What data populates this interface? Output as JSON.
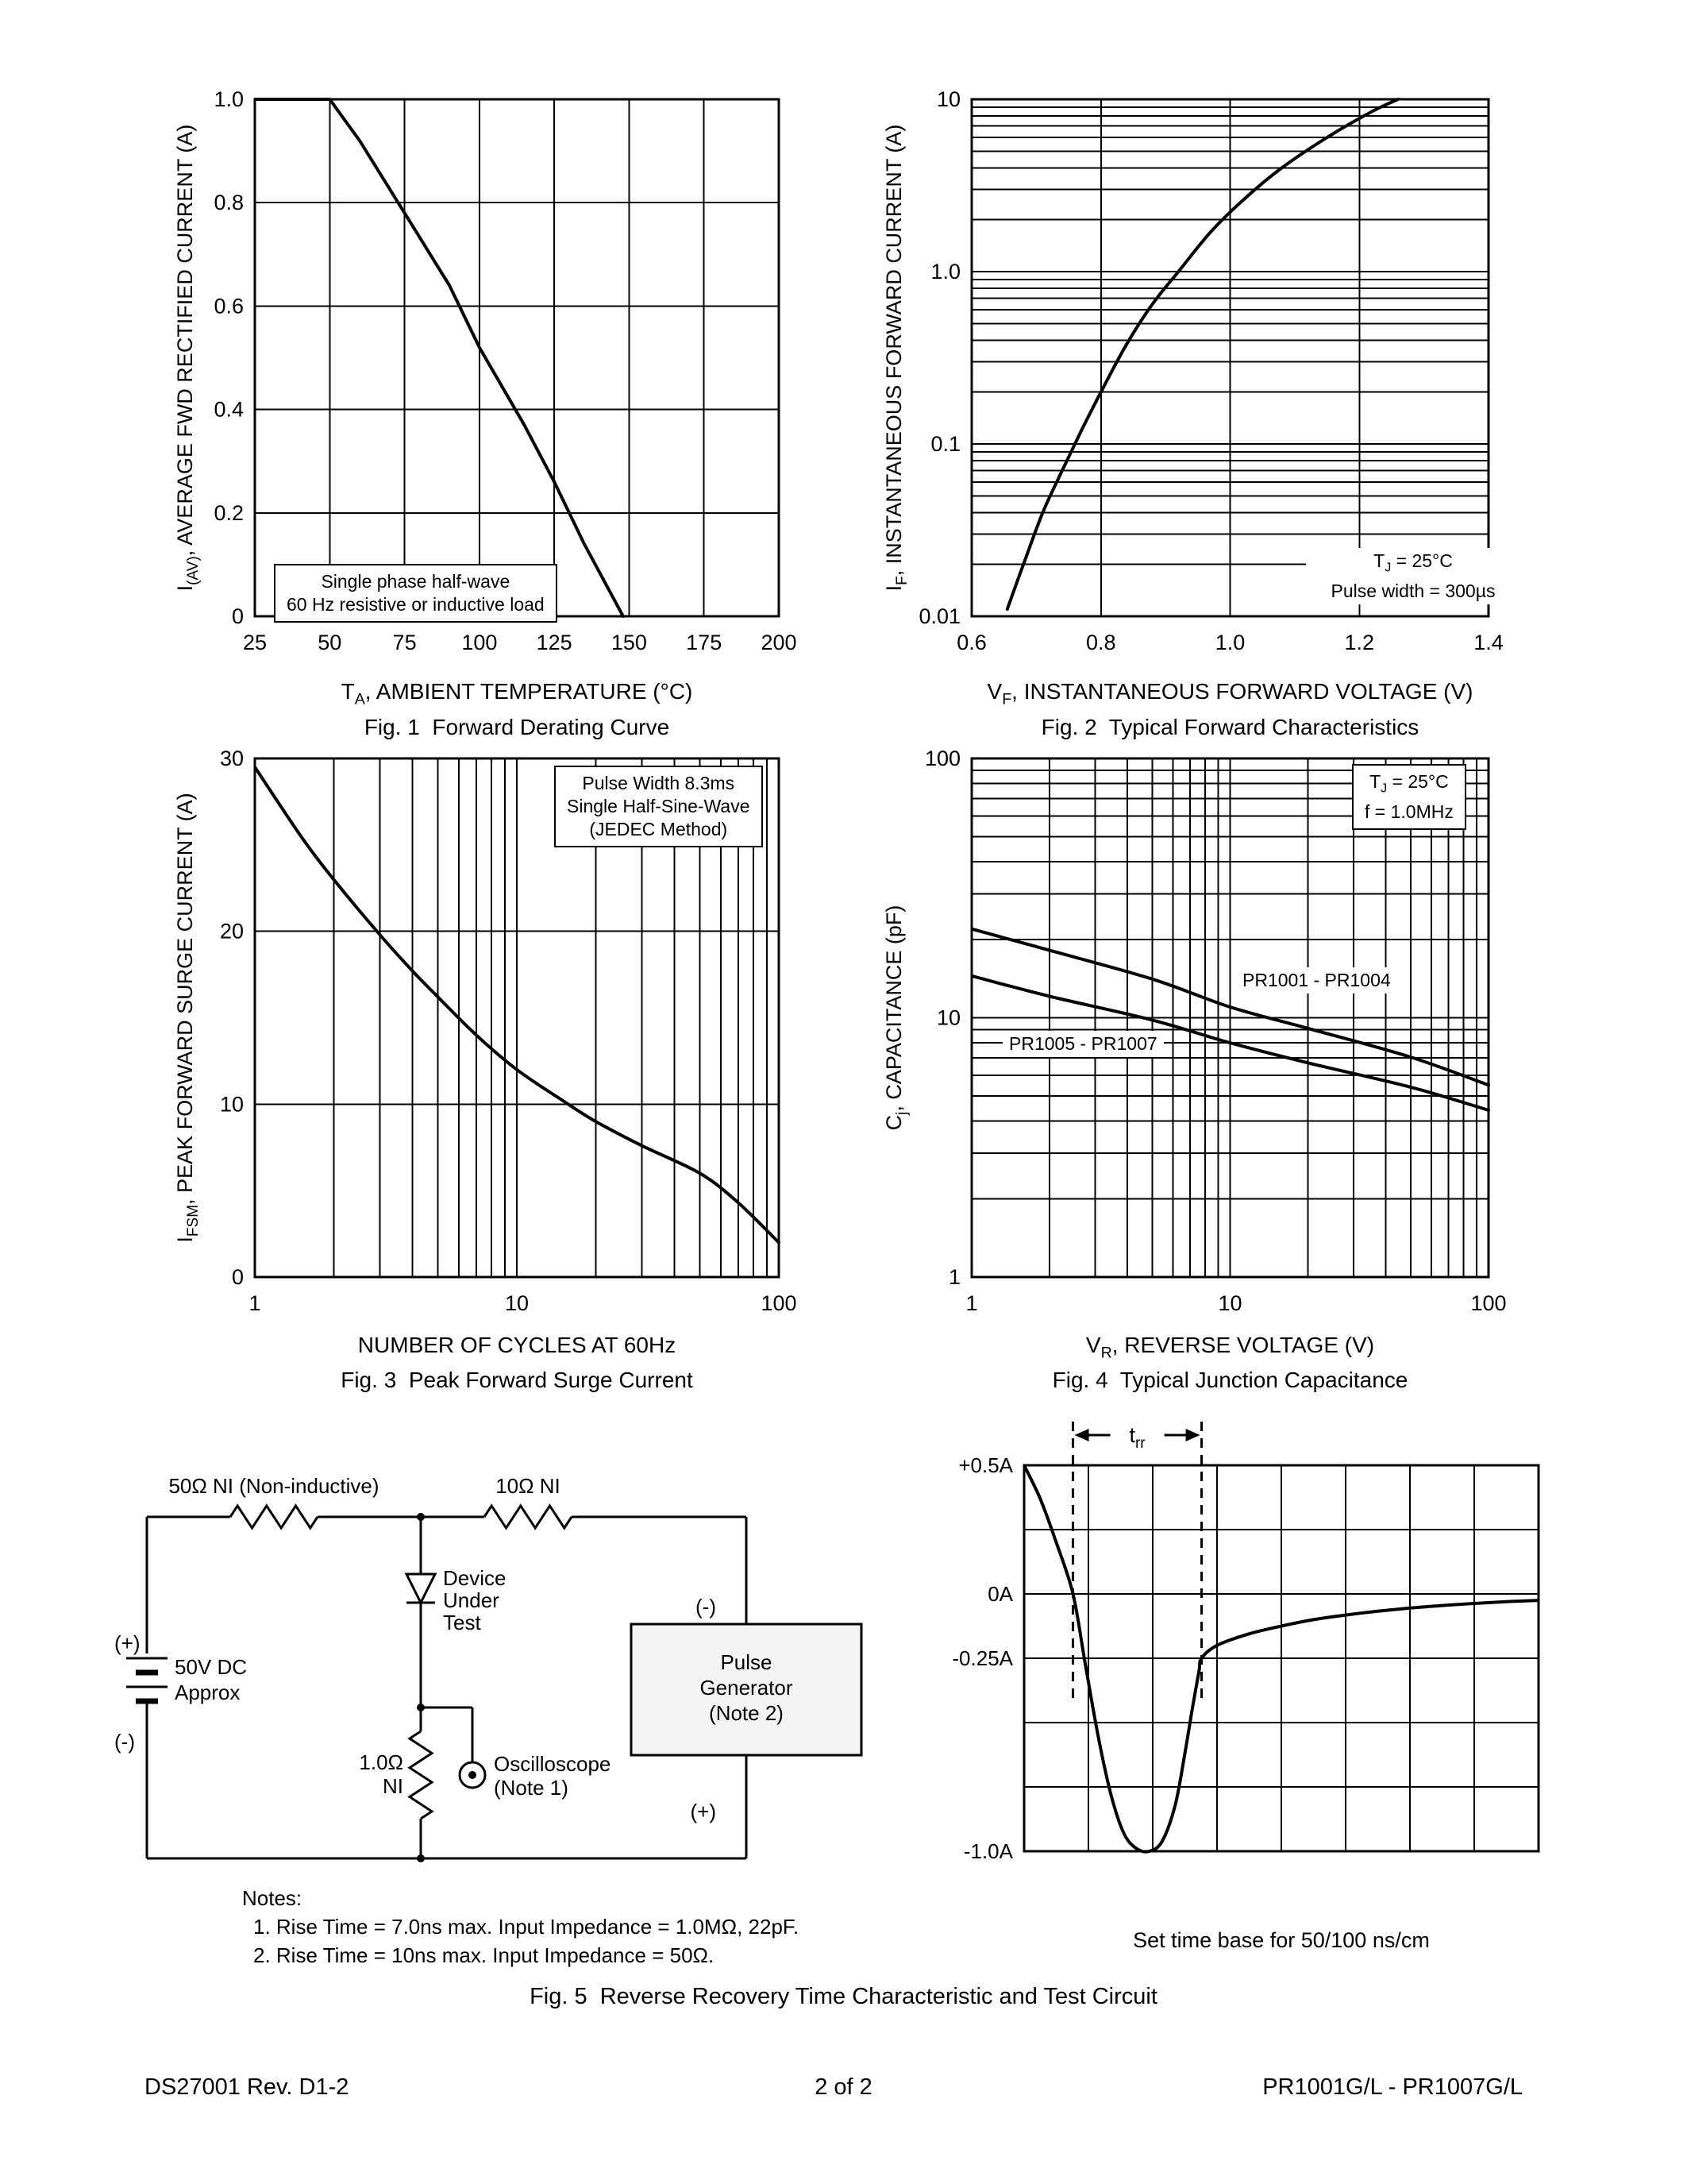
{
  "page": {
    "bg": "#ffffff",
    "fg": "#000000"
  },
  "chart_data": [
    {
      "id": "fig1",
      "type": "line",
      "title": "Fig. 1  Forward Derating Curve",
      "xlabel": [
        "T",
        {
          "sub": "A"
        },
        ", AMBIENT TEMPERATURE (°C)"
      ],
      "ylabel": [
        "I",
        {
          "sub": "(AV)"
        },
        ", AVERAGE FWD RECTIFIED CURRENT (A)"
      ],
      "xscale": "linear",
      "yscale": "linear",
      "xlim": [
        25,
        200
      ],
      "ylim": [
        0,
        1.0
      ],
      "xticks": [
        {
          "v": 25,
          "t": "25"
        },
        {
          "v": 50,
          "t": "50"
        },
        {
          "v": 75,
          "t": "75"
        },
        {
          "v": 100,
          "t": "100"
        },
        {
          "v": 125,
          "t": "125"
        },
        {
          "v": 150,
          "t": "150"
        },
        {
          "v": 175,
          "t": "175"
        },
        {
          "v": 200,
          "t": "200"
        }
      ],
      "yticks": [
        {
          "v": 1,
          "t": "1.0"
        },
        {
          "v": 0.8,
          "t": "0.8"
        },
        {
          "v": 0.6,
          "t": "0.6"
        },
        {
          "v": 0.4,
          "t": "0.4"
        },
        {
          "v": 0.2,
          "t": "0.2"
        },
        {
          "v": 0,
          "t": "0"
        }
      ],
      "xgrid": [
        50,
        75,
        100,
        125,
        150,
        175
      ],
      "ygrid": [
        0.2,
        0.4,
        0.6,
        0.8
      ],
      "annotations": [
        {
          "box": true,
          "lines": [
            [
              "Single phase half-wave"
            ],
            [
              "60 Hz resistive or inductive load"
            ]
          ]
        }
      ],
      "series": [
        {
          "name": "derating-limit",
          "x": [
            25,
            50,
            60,
            75,
            90,
            100,
            115,
            125,
            135,
            148
          ],
          "y": [
            1.0,
            1.0,
            0.92,
            0.78,
            0.64,
            0.52,
            0.37,
            0.26,
            0.14,
            0
          ]
        }
      ]
    },
    {
      "id": "fig2",
      "type": "line",
      "title": "Fig. 2  Typical Forward Characteristics",
      "xlabel": [
        "V",
        {
          "sub": "F"
        },
        ", INSTANTANEOUS FORWARD VOLTAGE (V)"
      ],
      "ylabel": [
        "I",
        {
          "sub": "F"
        },
        ", INSTANTANEOUS FORWARD CURRENT (A)"
      ],
      "xscale": "linear",
      "yscale": "log",
      "xlim": [
        0.6,
        1.4
      ],
      "ylim": [
        0.01,
        10
      ],
      "xticks": [
        {
          "v": 0.6,
          "t": "0.6"
        },
        {
          "v": 0.8,
          "t": "0.8"
        },
        {
          "v": 1.0,
          "t": "1.0"
        },
        {
          "v": 1.2,
          "t": "1.2"
        },
        {
          "v": 1.4,
          "t": "1.4"
        }
      ],
      "yticks": [
        {
          "v": 10,
          "t": "10"
        },
        {
          "v": 1,
          "t": "1.0"
        },
        {
          "v": 0.1,
          "t": "0.1"
        },
        {
          "v": 0.01,
          "t": "0.01"
        }
      ],
      "xgrid": [
        0.8,
        1.0,
        1.2
      ],
      "annotations": [
        {
          "box": false,
          "lines": [
            [
              "T",
              {
                "sub": "J"
              },
              " = 25°C"
            ],
            [
              "Pulse width = 300µs"
            ]
          ]
        }
      ],
      "series": [
        {
          "name": "forward-characteristic",
          "x": [
            0.655,
            0.68,
            0.71,
            0.74,
            0.77,
            0.8,
            0.84,
            0.88,
            0.92,
            0.97,
            1.02,
            1.08,
            1.15,
            1.22,
            1.26
          ],
          "y": [
            0.011,
            0.02,
            0.04,
            0.07,
            0.12,
            0.2,
            0.38,
            0.65,
            1.0,
            1.7,
            2.6,
            4.0,
            6.0,
            8.5,
            10
          ]
        }
      ]
    },
    {
      "id": "fig3",
      "type": "line",
      "title": "Fig. 3  Peak Forward Surge Current",
      "xlabel": [
        "NUMBER OF CYCLES AT 60Hz"
      ],
      "ylabel": [
        "I",
        {
          "sub": "FSM"
        },
        ", PEAK FORWARD SURGE CURRENT (A)"
      ],
      "xscale": "log",
      "yscale": "linear",
      "xlim": [
        1,
        100
      ],
      "ylim": [
        0,
        30
      ],
      "xticks": [
        {
          "v": 1,
          "t": "1"
        },
        {
          "v": 10,
          "t": "10"
        },
        {
          "v": 100,
          "t": "100"
        }
      ],
      "yticks": [
        {
          "v": 30,
          "t": "30"
        },
        {
          "v": 20,
          "t": "20"
        },
        {
          "v": 10,
          "t": "10"
        },
        {
          "v": 0,
          "t": "0"
        }
      ],
      "ygrid": [
        10,
        20
      ],
      "annotations": [
        {
          "box": true,
          "lines": [
            [
              "Pulse Width 8.3ms"
            ],
            [
              "Single Half-Sine-Wave"
            ],
            [
              "(JEDEC Method)"
            ]
          ]
        }
      ],
      "series": [
        {
          "name": "surge-current",
          "x": [
            1,
            1.5,
            2,
            3,
            4,
            5,
            7,
            10,
            15,
            20,
            30,
            50,
            70,
            100
          ],
          "y": [
            29.5,
            25.5,
            23,
            19.8,
            17.7,
            16.2,
            14,
            12,
            10.2,
            9.0,
            7.6,
            6.0,
            4.3,
            2.0
          ]
        }
      ]
    },
    {
      "id": "fig4",
      "type": "line",
      "title": "Fig. 4  Typical Junction Capacitance",
      "xlabel": [
        "V",
        {
          "sub": "R"
        },
        ", REVERSE VOLTAGE (V)"
      ],
      "ylabel": [
        "C",
        {
          "sub": "j"
        },
        ", CAPACITANCE (pF)"
      ],
      "xscale": "log",
      "yscale": "log",
      "xlim": [
        1,
        100
      ],
      "ylim": [
        1,
        100
      ],
      "xticks": [
        {
          "v": 1,
          "t": "1"
        },
        {
          "v": 10,
          "t": "10"
        },
        {
          "v": 100,
          "t": "100"
        }
      ],
      "yticks": [
        {
          "v": 100,
          "t": "100"
        },
        {
          "v": 10,
          "t": "10"
        },
        {
          "v": 1,
          "t": "1"
        }
      ],
      "annotations": [
        {
          "box": true,
          "lines": [
            [
              "T",
              {
                "sub": "J"
              },
              " = 25°C"
            ],
            [
              "f = 1.0MHz"
            ]
          ]
        },
        {
          "box": false,
          "lines": [
            [
              "PR1001 - PR1004"
            ]
          ]
        },
        {
          "box": false,
          "lines": [
            [
              "PR1005 - PR1007"
            ]
          ]
        }
      ],
      "series": [
        {
          "name": "PR1001 - PR1004",
          "x": [
            1,
            2,
            5,
            10,
            20,
            50,
            100
          ],
          "y": [
            22,
            18.2,
            14.1,
            11,
            9.1,
            7.05,
            5.5
          ]
        },
        {
          "name": "PR1005 - PR1007",
          "x": [
            1,
            2,
            5,
            10,
            20,
            50,
            100
          ],
          "y": [
            14.5,
            12.1,
            9.8,
            8.0,
            6.7,
            5.4,
            4.4
          ]
        }
      ]
    },
    {
      "id": "fig5-wave",
      "type": "line",
      "title": "Fig. 5  Reverse Recovery Time Characteristic and Test Circuit",
      "caption_below": "Set time base for 50/100 ns/cm",
      "ylabels": [
        {
          "t": "+0.5A",
          "f": 0
        },
        {
          "t": "0A",
          "f": 0.3333
        },
        {
          "t": "-0.25A",
          "f": 0.5
        },
        {
          "t": "-1.0A",
          "f": 1
        }
      ],
      "cols": 8,
      "rows": 6,
      "amp_top": 0.5,
      "amp_bottom": -1.0,
      "marker_label": [
        "t",
        {
          "sub": "rr"
        }
      ],
      "dashed_x": [
        0.095,
        0.345
      ],
      "series": [
        {
          "name": "reverse-recovery-current",
          "x": [
            0,
            0.25,
            0.5,
            0.76,
            0.95,
            1.15,
            1.35,
            1.55,
            1.75,
            1.95,
            2.15,
            2.35,
            2.5,
            2.62,
            2.72,
            2.76,
            3.0,
            3.5,
            4,
            4.5,
            5,
            5.5,
            6,
            6.5,
            7,
            7.5,
            8
          ],
          "amps": [
            0.5,
            0.37,
            0.2,
            0,
            -0.27,
            -0.55,
            -0.78,
            -0.93,
            -0.99,
            -1.0,
            -0.96,
            -0.82,
            -0.62,
            -0.44,
            -0.3,
            -0.25,
            -0.2,
            -0.155,
            -0.125,
            -0.1,
            -0.082,
            -0.067,
            -0.055,
            -0.045,
            -0.037,
            -0.03,
            -0.025
          ]
        }
      ]
    }
  ],
  "figure5": {
    "circuit": {
      "r1_label": "50Ω NI (Non-inductive)",
      "r2_label": "10Ω NI",
      "r3_label": [
        "1.0Ω",
        "NI"
      ],
      "battery_label": [
        "50V DC",
        "Approx"
      ],
      "battery_plus": "(+)",
      "battery_minus": "(-)",
      "generator_minus": "(-)",
      "generator_plus": "(+)",
      "dut_label": [
        "Device",
        "Under",
        "Test"
      ],
      "scope_label": [
        "Oscilloscope",
        "(Note 1)"
      ],
      "generator_label": [
        "Pulse",
        "Generator",
        "(Note 2)"
      ],
      "box_fill": "#f4f4f4"
    },
    "notes": {
      "title": "Notes:",
      "items": [
        "1. Rise Time = 7.0ns max. Input Impedance = 1.0MΩ, 22pF.",
        "2. Rise Time = 10ns max. Input Impedance = 50Ω."
      ]
    }
  },
  "footer": {
    "left": "DS27001 Rev. D1-2",
    "center": "2 of 2",
    "right": "PR1001G/L - PR1007G/L"
  }
}
